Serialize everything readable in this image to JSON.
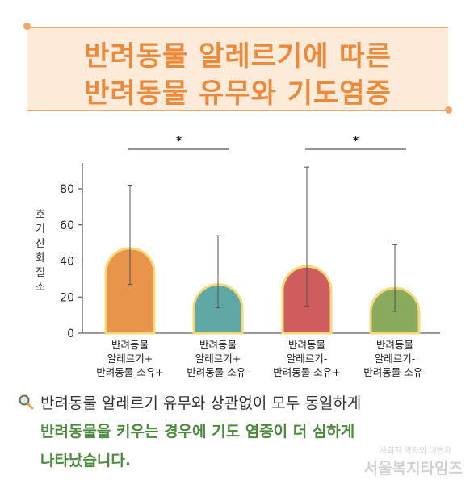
{
  "header": {
    "title_line1": "반려동물 알레르기에 따른",
    "title_line2": "반려동물 유무와 기도염증"
  },
  "chart_data": {
    "type": "bar",
    "ylabel": "호기산화질소",
    "ylim": [
      0,
      90
    ],
    "yticks": [
      0,
      20,
      40,
      60,
      80
    ],
    "categories": [
      [
        "반려동물",
        "알레르기+",
        "반려동물 소유+"
      ],
      [
        "반려동물",
        "알레르기+",
        "반려동물 소유-"
      ],
      [
        "반려동물",
        "알레르기-",
        "반려동물 소유+"
      ],
      [
        "반려동물",
        "알레르기-",
        "반려동물 소유-"
      ]
    ],
    "values": [
      47,
      27,
      37,
      25
    ],
    "error_low": [
      27,
      14,
      15,
      12
    ],
    "error_high": [
      82,
      54,
      92,
      49
    ],
    "colors": [
      "#e8944a",
      "#5fa8a5",
      "#d05d5d",
      "#8aab5e"
    ],
    "outline_color": "#f6d878",
    "significance": [
      {
        "from": 0,
        "to": 1,
        "label": "*"
      },
      {
        "from": 2,
        "to": 3,
        "label": "*"
      }
    ]
  },
  "caption": {
    "line1": "반려동물 알레르기 유무와 상관없이 모두 동일하게",
    "line2": "반려동물을 키우는 경우에 기도 염증이 더 심하게",
    "line3": "나타났습니다."
  },
  "watermark": {
    "main": "서울복지타임즈",
    "sub": "사회적 약자의 대변자"
  }
}
